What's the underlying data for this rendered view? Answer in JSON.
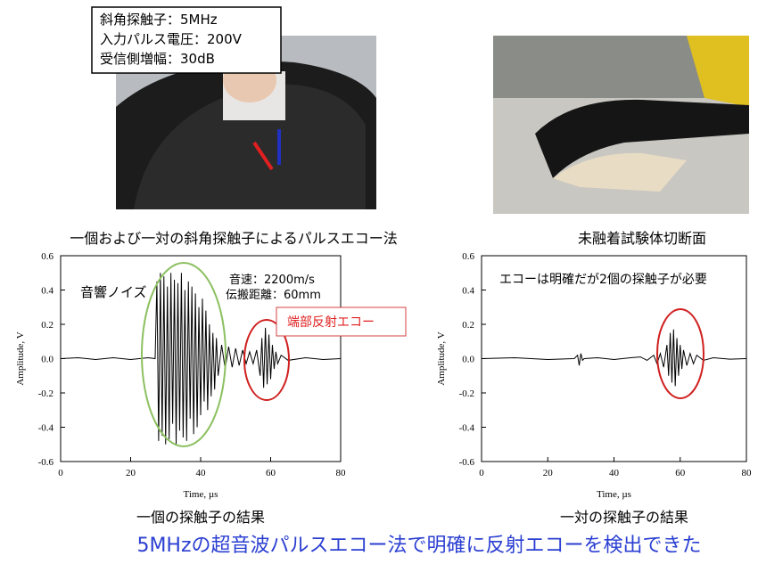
{
  "slide": {
    "spec_box": [
      "斜角探触子：5MHz",
      "入力パルス電圧：200V",
      "受信側増幅：30dB"
    ],
    "photo_captions": [
      "一個および一対の斜角探触子によるパルスエコー法",
      "未融着試験体切断面"
    ],
    "conclusion": "5MHzの超音波パルスエコー法で明確に反射エコーを検出できた"
  },
  "chart_data": [
    {
      "type": "line",
      "caption": "一個の探触子の結果",
      "xlabel": "Time, µs",
      "ylabel": "Amplitude, V",
      "annotations": [
        "音響ノイズ",
        "音速：2200m/s",
        "伝搬距離：60mm",
        "端部反射エコー"
      ],
      "xlim": [
        0,
        80
      ],
      "ylim": [
        -0.6,
        0.6
      ],
      "xticks": [
        0,
        20,
        40,
        60,
        80
      ],
      "yticks": [
        -0.6,
        -0.4,
        -0.2,
        {
          "value": 0,
          "label": "0.0"
        },
        0.2,
        0.4,
        0.6
      ],
      "series": [
        {
          "color": "#000000",
          "x": [
            0,
            5,
            10,
            15,
            20,
            25,
            27,
            27.5,
            28,
            28.5,
            29,
            29.5,
            30,
            30.5,
            31,
            31.5,
            32,
            32.5,
            33,
            33.5,
            34,
            34.5,
            35,
            35.5,
            36,
            36.5,
            37,
            37.5,
            38,
            38.5,
            39,
            39.5,
            40,
            40.5,
            41,
            41.5,
            42,
            42.5,
            43,
            43.5,
            44,
            44.5,
            45,
            46,
            47,
            48,
            49,
            50,
            51,
            52,
            53,
            54,
            55,
            56,
            57,
            57.5,
            58,
            58.5,
            59,
            59.5,
            60,
            60.5,
            61,
            61.5,
            62,
            63,
            65,
            70,
            75,
            80
          ],
          "values": [
            0,
            0.005,
            -0.005,
            0.005,
            -0.005,
            0.005,
            0,
            0.45,
            -0.48,
            0.5,
            -0.45,
            0.48,
            -0.5,
            0.42,
            -0.47,
            0.5,
            -0.38,
            0.46,
            -0.5,
            0.44,
            -0.42,
            0.5,
            -0.46,
            0.4,
            -0.48,
            0.45,
            -0.35,
            0.42,
            -0.44,
            0.38,
            -0.4,
            0.3,
            -0.33,
            0.35,
            -0.25,
            0.28,
            -0.3,
            0.2,
            -0.22,
            0.15,
            -0.18,
            0.12,
            -0.1,
            0.08,
            -0.06,
            0.07,
            -0.05,
            0.06,
            -0.04,
            0.05,
            -0.03,
            0.04,
            -0.03,
            0.05,
            -0.1,
            0.12,
            -0.17,
            0.18,
            -0.15,
            0.14,
            -0.12,
            0.08,
            -0.06,
            0.04,
            -0.03,
            0.02,
            -0.01,
            0.005,
            -0.005,
            0
          ]
        }
      ]
    },
    {
      "type": "line",
      "caption": "一対の探触子の結果",
      "xlabel": "Time, µs",
      "ylabel": "Amplitude, V",
      "annotations": [
        "エコーは明確だが2個の探触子が必要"
      ],
      "xlim": [
        0,
        80
      ],
      "ylim": [
        -0.6,
        0.6
      ],
      "xticks": [
        0,
        20,
        40,
        60,
        80
      ],
      "yticks": [
        -0.6,
        -0.4,
        -0.2,
        {
          "value": 0,
          "label": "0.0"
        },
        0.2,
        0.4,
        0.6
      ],
      "series": [
        {
          "color": "#000000",
          "x": [
            0,
            10,
            20,
            28,
            29,
            29.5,
            30,
            30.5,
            31,
            35,
            40,
            45,
            48,
            50,
            52,
            53,
            54,
            55,
            56,
            56.5,
            57,
            57.5,
            58,
            58.5,
            59,
            59.5,
            60,
            60.5,
            61,
            62,
            63,
            64,
            65,
            67,
            70,
            75,
            80
          ],
          "values": [
            0,
            0.005,
            -0.005,
            0,
            0.02,
            -0.04,
            0.03,
            -0.01,
            0,
            0.005,
            -0.005,
            0.005,
            0.01,
            -0.01,
            0.02,
            -0.03,
            0.03,
            -0.05,
            0.08,
            -0.1,
            0.15,
            -0.14,
            0.17,
            -0.16,
            0.12,
            -0.1,
            0.08,
            -0.06,
            0.05,
            -0.04,
            0.03,
            -0.03,
            0.02,
            -0.01,
            0.005,
            -0.003,
            0
          ]
        }
      ]
    }
  ]
}
